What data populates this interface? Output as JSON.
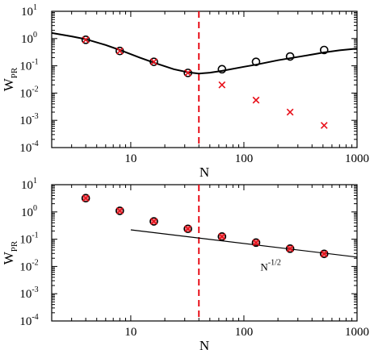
{
  "colors": {
    "red": "#e8101a",
    "black": "#000000"
  },
  "chart_data": [
    {
      "type": "scatter",
      "title": "",
      "xlabel": "N",
      "ylabel": {
        "main": "W",
        "sub": "PR"
      },
      "xscale": "log",
      "yscale": "log",
      "xlim": [
        2,
        1000
      ],
      "ylim": [
        0.0001,
        10
      ],
      "x_ticks": [
        {
          "v": 10,
          "label": "10"
        },
        {
          "v": 100,
          "label": "100"
        },
        {
          "v": 1000,
          "label": "1000"
        }
      ],
      "y_ticks": [
        {
          "v": 0.0001,
          "base": "10",
          "exp": "-4"
        },
        {
          "v": 0.001,
          "base": "10",
          "exp": "-3"
        },
        {
          "v": 0.01,
          "base": "10",
          "exp": "-2"
        },
        {
          "v": 0.1,
          "base": "10",
          "exp": "-1"
        },
        {
          "v": 1,
          "base": "10",
          "exp": "0"
        },
        {
          "v": 10,
          "base": "10",
          "exp": "1"
        }
      ],
      "vline": {
        "x": 40,
        "color": "#e8101a",
        "style": "dashed"
      },
      "series": [
        {
          "marker": "circle",
          "color": "#000000",
          "x": [
            4,
            8,
            16,
            32,
            64,
            128,
            256,
            512
          ],
          "y": [
            0.9,
            0.35,
            0.14,
            0.055,
            0.075,
            0.14,
            0.22,
            0.38
          ]
        },
        {
          "marker": "cross",
          "color": "#e8101a",
          "x": [
            4,
            8,
            16,
            32,
            64,
            128,
            256,
            512
          ],
          "y": [
            0.9,
            0.35,
            0.14,
            0.055,
            0.02,
            0.0055,
            0.002,
            0.00065
          ]
        },
        {
          "marker": "line",
          "color": "#000000",
          "x": [
            2,
            3,
            4,
            6,
            8,
            12,
            16,
            24,
            32,
            40,
            50,
            64,
            100,
            128,
            200,
            256,
            400,
            512,
            700,
            1000
          ],
          "y": [
            1.6,
            1.2,
            0.95,
            0.58,
            0.38,
            0.2,
            0.13,
            0.075,
            0.058,
            0.052,
            0.056,
            0.065,
            0.092,
            0.11,
            0.16,
            0.19,
            0.26,
            0.31,
            0.37,
            0.43
          ]
        }
      ]
    },
    {
      "type": "scatter",
      "title": "",
      "xlabel": "N",
      "ylabel": {
        "main": "W",
        "sub": "PR"
      },
      "xscale": "log",
      "yscale": "log",
      "xlim": [
        2,
        1000
      ],
      "ylim": [
        0.0001,
        10
      ],
      "x_ticks": [
        {
          "v": 10,
          "label": "10"
        },
        {
          "v": 100,
          "label": "100"
        },
        {
          "v": 1000,
          "label": "1000"
        }
      ],
      "y_ticks": [
        {
          "v": 0.0001,
          "base": "10",
          "exp": "-4"
        },
        {
          "v": 0.001,
          "base": "10",
          "exp": "-3"
        },
        {
          "v": 0.01,
          "base": "10",
          "exp": "-2"
        },
        {
          "v": 0.1,
          "base": "10",
          "exp": "-1"
        },
        {
          "v": 1,
          "base": "10",
          "exp": "0"
        },
        {
          "v": 10,
          "base": "10",
          "exp": "1"
        }
      ],
      "vline": {
        "x": 40,
        "color": "#e8101a",
        "style": "dashed"
      },
      "series": [
        {
          "marker": "circle",
          "color": "#000000",
          "x": [
            4,
            8,
            16,
            32,
            64,
            128,
            256,
            512
          ],
          "y": [
            3.2,
            1.1,
            0.45,
            0.24,
            0.125,
            0.075,
            0.045,
            0.029
          ]
        },
        {
          "marker": "cross",
          "color": "#e8101a",
          "x": [
            4,
            8,
            16,
            32,
            64,
            128,
            256,
            512
          ],
          "y": [
            3.2,
            1.1,
            0.45,
            0.24,
            0.125,
            0.075,
            0.045,
            0.029
          ]
        },
        {
          "marker": "filled",
          "color": "#e8101a",
          "x": [
            4,
            8,
            16,
            32,
            64,
            128,
            256,
            512
          ],
          "y": [
            3.2,
            1.1,
            0.45,
            0.24,
            0.125,
            0.075,
            0.045,
            0.029
          ]
        },
        {
          "marker": "line",
          "color": "#000000",
          "x": [
            10,
            1000
          ],
          "y": [
            0.22,
            0.022
          ]
        }
      ],
      "annotations": [
        {
          "base": "N",
          "exp": "-1/2",
          "x": 140,
          "y": 0.007
        }
      ]
    }
  ]
}
